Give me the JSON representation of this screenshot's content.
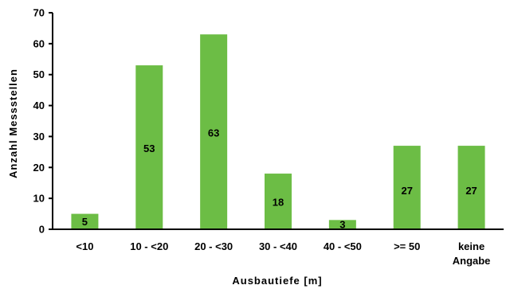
{
  "chart_data": {
    "type": "bar",
    "title": "",
    "xlabel": "Ausbautiefe [m]",
    "ylabel": "Anzahl Messstellen",
    "categories": [
      [
        "<10"
      ],
      [
        "10 - <20"
      ],
      [
        "20 - <30"
      ],
      [
        "30 - <40"
      ],
      [
        "40 - <50"
      ],
      [
        ">= 50"
      ],
      [
        "keine",
        "Angabe"
      ]
    ],
    "values": [
      5,
      53,
      63,
      18,
      3,
      27,
      27
    ],
    "data_labels": [
      "5",
      "53",
      "63",
      "18",
      "3",
      "27",
      "27"
    ],
    "ylim": [
      0,
      70
    ],
    "yticks": [
      "0",
      "10",
      "20",
      "30",
      "40",
      "50",
      "60",
      "70"
    ],
    "grid": false,
    "legend": "none",
    "colors": {
      "bar": "#6cbd45",
      "axis": "#000000",
      "text": "#000000"
    }
  }
}
